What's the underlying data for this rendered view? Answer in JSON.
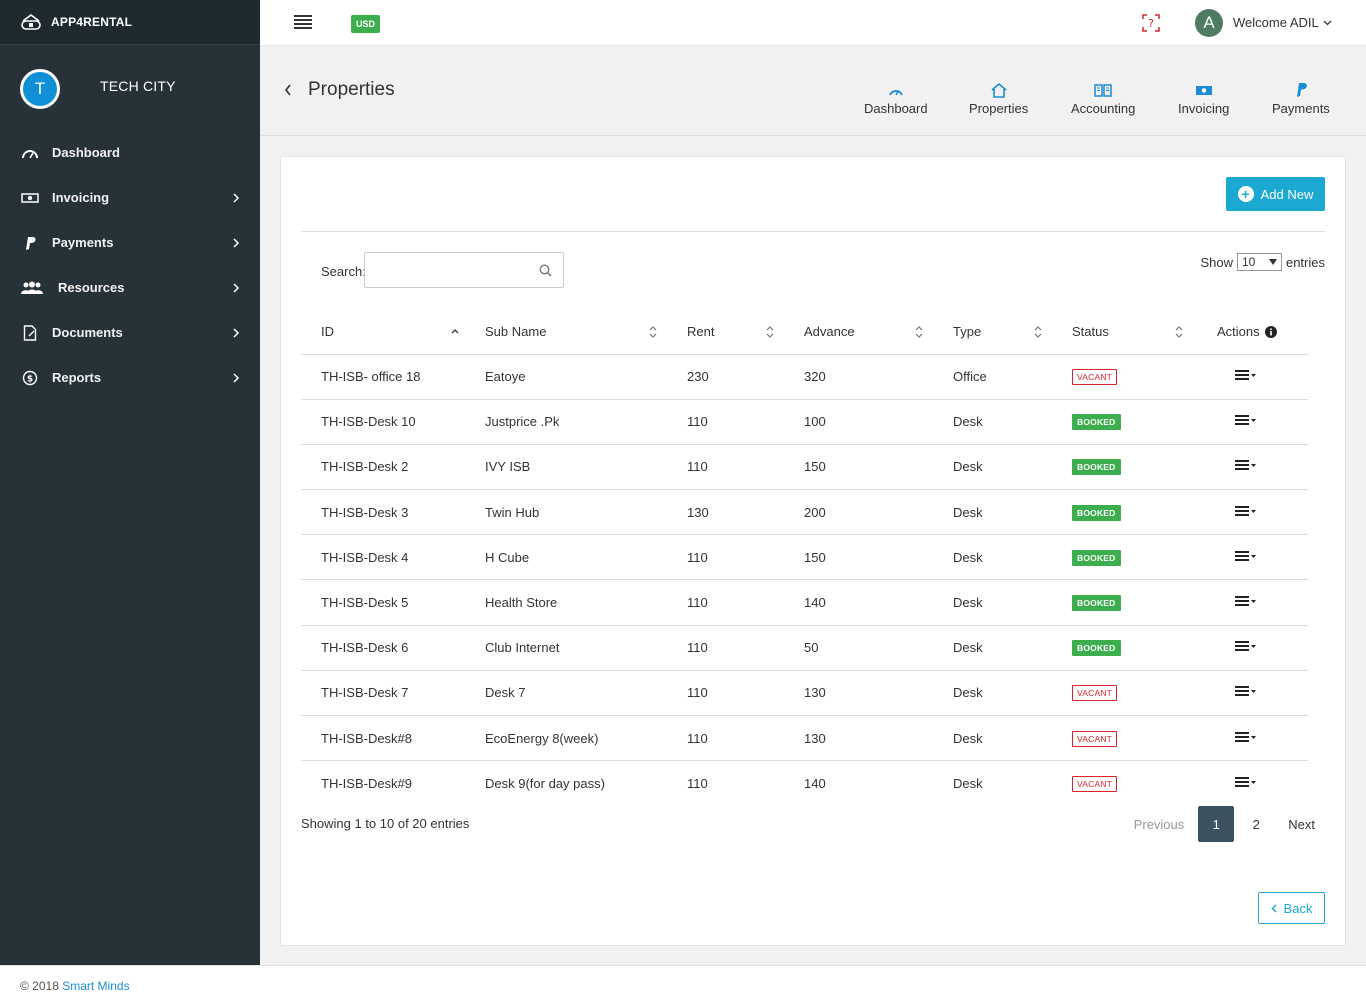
{
  "brand": {
    "name": "APP4RENTAL"
  },
  "company": {
    "initial": "T",
    "name": "TECH CITY"
  },
  "sidebar": {
    "items": [
      {
        "label": "Dashboard",
        "icon": "speedometer-icon",
        "has_chevron": false
      },
      {
        "label": "Invoicing",
        "icon": "money-icon",
        "has_chevron": true
      },
      {
        "label": "Payments",
        "icon": "paypal-icon",
        "has_chevron": true
      },
      {
        "label": "Resources",
        "icon": "users-icon",
        "has_chevron": true
      },
      {
        "label": "Documents",
        "icon": "document-icon",
        "has_chevron": true
      },
      {
        "label": "Reports",
        "icon": "dollar-circle-icon",
        "has_chevron": true
      }
    ]
  },
  "topbar": {
    "currency": "USD",
    "user_initial": "A",
    "welcome": "Welcome ADIL"
  },
  "header": {
    "title": "Properties",
    "quick_links": [
      {
        "label": "Dashboard",
        "icon": "speedometer-icon"
      },
      {
        "label": "Properties",
        "icon": "home-icon"
      },
      {
        "label": "Accounting",
        "icon": "book-icon"
      },
      {
        "label": "Invoicing",
        "icon": "money-icon"
      },
      {
        "label": "Payments",
        "icon": "paypal-icon"
      }
    ]
  },
  "toolbar": {
    "add_new": "Add New",
    "search_label": "Search:",
    "search_value": "",
    "show_label": "Show",
    "show_value": "10",
    "entries_label": "entries"
  },
  "table": {
    "columns": [
      "ID",
      "Sub Name",
      "Rent",
      "Advance",
      "Type",
      "Status",
      "Actions"
    ],
    "rows": [
      {
        "id": "TH-ISB- office 18",
        "sub_name": "Eatoye",
        "rent": "230",
        "advance": "320",
        "type": "Office",
        "status": "VACANT"
      },
      {
        "id": "TH-ISB-Desk 10",
        "sub_name": "Justprice .Pk",
        "rent": "110",
        "advance": "100",
        "type": "Desk",
        "status": "BOOKED"
      },
      {
        "id": "TH-ISB-Desk 2",
        "sub_name": "IVY ISB",
        "rent": "110",
        "advance": "150",
        "type": "Desk",
        "status": "BOOKED"
      },
      {
        "id": "TH-ISB-Desk 3",
        "sub_name": "Twin Hub",
        "rent": "130",
        "advance": "200",
        "type": "Desk",
        "status": "BOOKED"
      },
      {
        "id": "TH-ISB-Desk 4",
        "sub_name": "H Cube",
        "rent": "110",
        "advance": "150",
        "type": "Desk",
        "status": "BOOKED"
      },
      {
        "id": "TH-ISB-Desk 5",
        "sub_name": "Health Store",
        "rent": "110",
        "advance": "140",
        "type": "Desk",
        "status": "BOOKED"
      },
      {
        "id": "TH-ISB-Desk 6",
        "sub_name": "Club Internet",
        "rent": "110",
        "advance": "50",
        "type": "Desk",
        "status": "BOOKED"
      },
      {
        "id": "TH-ISB-Desk 7",
        "sub_name": "Desk 7",
        "rent": "110",
        "advance": "130",
        "type": "Desk",
        "status": "VACANT"
      },
      {
        "id": "TH-ISB-Desk#8",
        "sub_name": "EcoEnergy 8(week)",
        "rent": "110",
        "advance": "130",
        "type": "Desk",
        "status": "VACANT"
      },
      {
        "id": "TH-ISB-Desk#9",
        "sub_name": "Desk 9(for day pass)",
        "rent": "110",
        "advance": "140",
        "type": "Desk",
        "status": "VACANT"
      }
    ]
  },
  "pagination": {
    "summary": "Showing 1 to 10 of 20 entries",
    "previous": "Previous",
    "pages": [
      "1",
      "2"
    ],
    "next": "Next"
  },
  "back_button": "Back",
  "footer": {
    "copyright": "© 2018",
    "link": "Smart Minds"
  },
  "colors": {
    "sidebar_bg": "#263238",
    "accent": "#1ba9d2",
    "booked": "#3cae4e",
    "vacant": "#d9232d",
    "active_page": "#3d5260"
  }
}
